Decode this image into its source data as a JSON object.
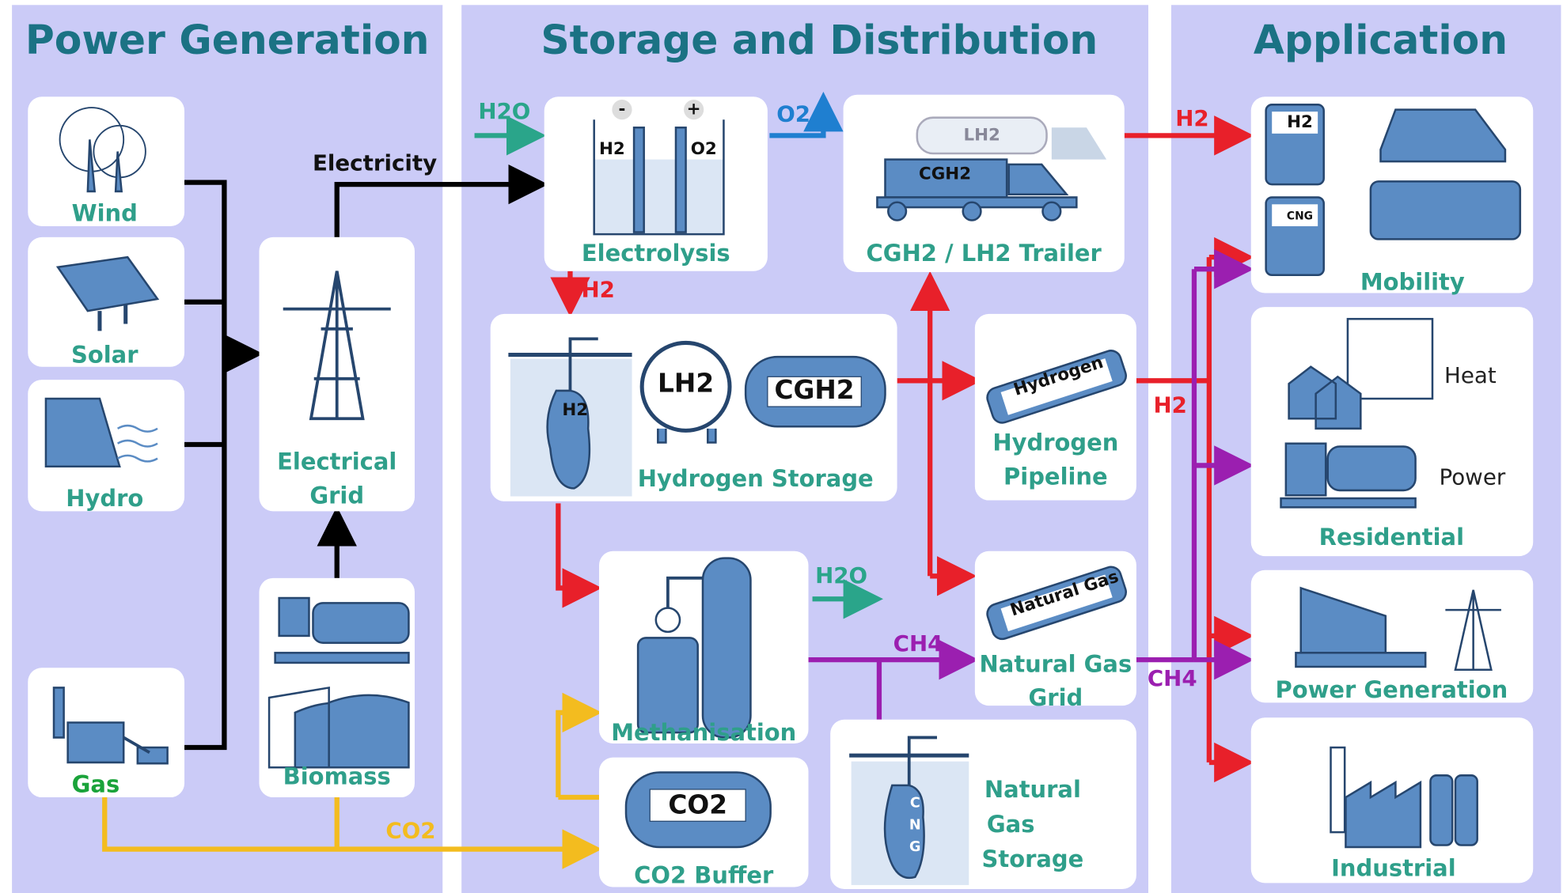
{
  "sections": [
    {
      "title": "Power Generation"
    },
    {
      "title": "Storage and Distribution"
    },
    {
      "title": "Application"
    }
  ],
  "nodes": [
    {
      "label": [
        "Wind"
      ]
    },
    {
      "label": [
        "Solar"
      ]
    },
    {
      "label": [
        "Hydro"
      ]
    },
    {
      "label": [
        "Gas"
      ]
    },
    {
      "label": [
        "Electrical",
        "Grid"
      ]
    },
    {
      "label": [
        "Biomass"
      ]
    },
    {
      "label": [
        "Electrolysis"
      ]
    },
    {
      "label": [
        "CGH2 / LH2 Trailer"
      ]
    },
    {
      "label": [
        "Hydrogen Storage"
      ]
    },
    {
      "label": [
        "Hydrogen",
        "Pipeline"
      ]
    },
    {
      "label": [
        "Methanisation"
      ]
    },
    {
      "label": [
        "CO2 Buffer"
      ]
    },
    {
      "label": [
        "Natural Gas",
        "Grid"
      ]
    },
    {
      "label": [
        "Natural",
        "Gas",
        "Storage"
      ]
    },
    {
      "label": [
        "Mobility"
      ]
    },
    {
      "label": [
        "Residential"
      ]
    },
    {
      "label": [
        "Power Generation"
      ]
    },
    {
      "label": [
        "Industrial"
      ]
    }
  ],
  "flows": [
    {
      "label": "Electricity"
    },
    {
      "label": "H2O"
    },
    {
      "label": "O2"
    },
    {
      "label": "H2"
    },
    {
      "label": "H2"
    },
    {
      "label": "H2"
    },
    {
      "label": "H2O"
    },
    {
      "label": "CH4"
    },
    {
      "label": "CH4"
    },
    {
      "label": "CO2"
    }
  ],
  "residential_uses": [
    "Heat",
    "Power"
  ],
  "icon_labels": {
    "electrolysis": [
      "-",
      "+",
      "H2",
      "O2"
    ],
    "trailer": [
      "LH2",
      "CGH2"
    ],
    "storage": [
      "H2",
      "LH2",
      "CGH2"
    ],
    "pipeline": "Hydrogen",
    "ng_grid": "Natural Gas",
    "co2_buffer": "CO2",
    "ng_storage": [
      "C",
      "N",
      "G"
    ],
    "mobility": [
      "H2",
      "CNG"
    ]
  }
}
